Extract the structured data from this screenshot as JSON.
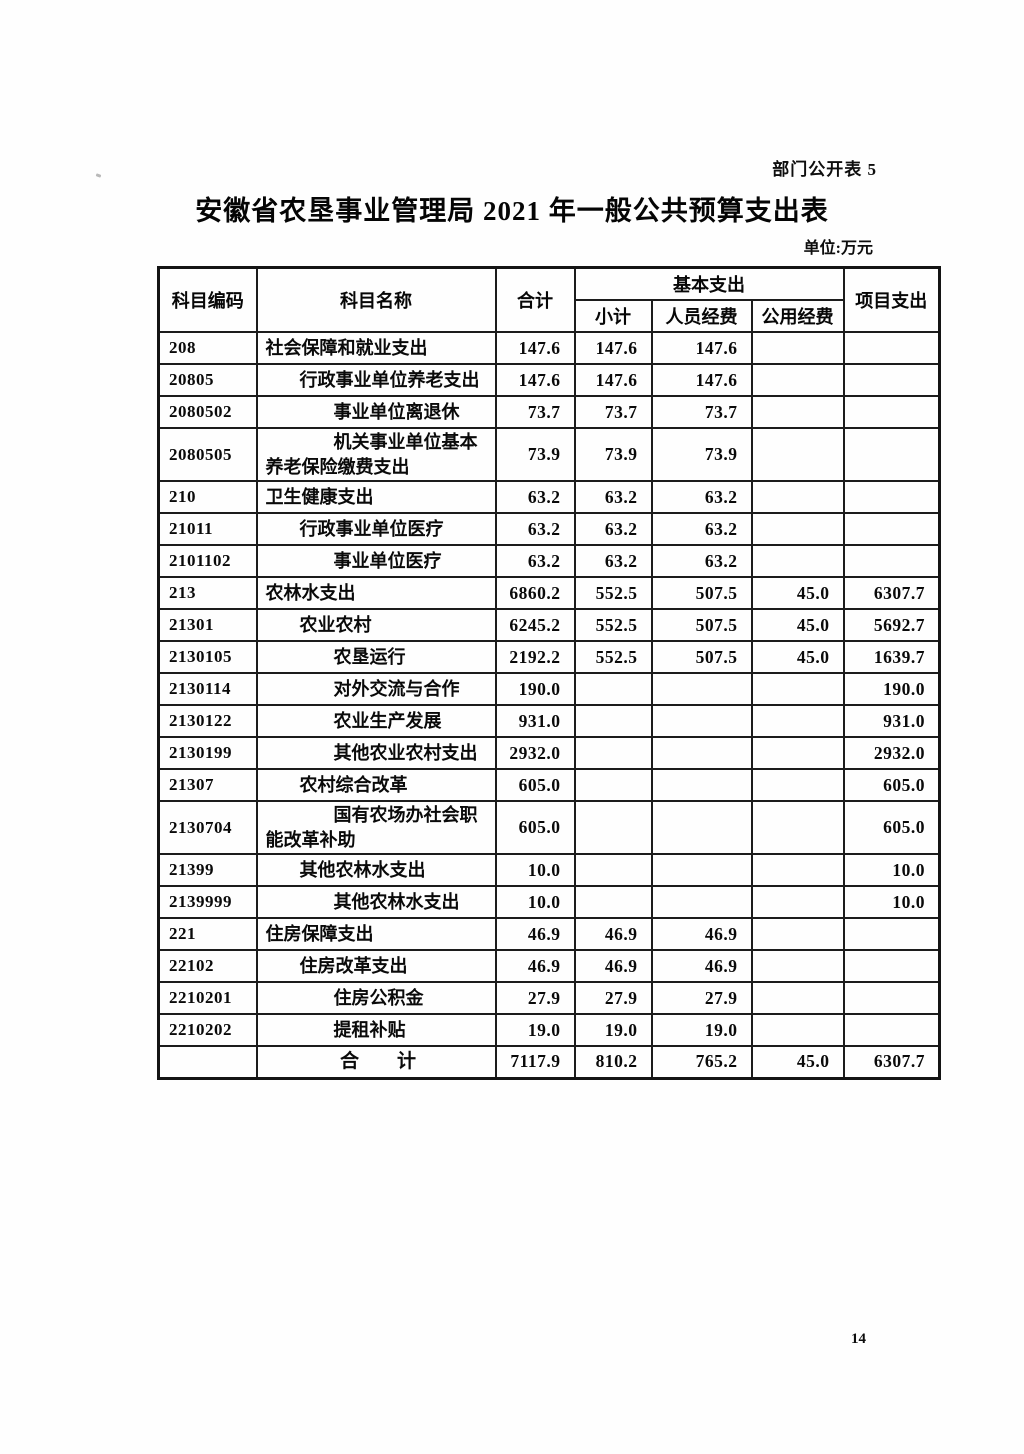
{
  "page": {
    "corner_note": "部门公开表 5",
    "title": "安徽省农垦事业管理局 2021 年一般公共预算支出表",
    "unit_label": "单位:万元",
    "page_number": "14"
  },
  "table": {
    "headers": {
      "code": "科目编码",
      "name": "科目名称",
      "total": "合计",
      "basic_group": "基本支出",
      "basic_subtotal": "小计",
      "basic_personnel": "人员经费",
      "basic_public": "公用经费",
      "project": "项目支出"
    },
    "rows": [
      {
        "code": "208",
        "name": "社会保障和就业支出",
        "level": "1",
        "total": "147.6",
        "subtotal": "147.6",
        "personnel": "147.6",
        "public": "",
        "project": ""
      },
      {
        "code": "20805",
        "name": "行政事业单位养老支出",
        "level": "2",
        "total": "147.6",
        "subtotal": "147.6",
        "personnel": "147.6",
        "public": "",
        "project": ""
      },
      {
        "code": "2080502",
        "name": "事业单位离退休",
        "level": "3",
        "total": "73.7",
        "subtotal": "73.7",
        "personnel": "73.7",
        "public": "",
        "project": ""
      },
      {
        "code": "2080505",
        "name": "机关事业单位基本\n养老保险缴费支出",
        "level": "3",
        "total": "73.9",
        "subtotal": "73.9",
        "personnel": "73.9",
        "public": "",
        "project": ""
      },
      {
        "code": "210",
        "name": "卫生健康支出",
        "level": "1",
        "total": "63.2",
        "subtotal": "63.2",
        "personnel": "63.2",
        "public": "",
        "project": ""
      },
      {
        "code": "21011",
        "name": "行政事业单位医疗",
        "level": "2",
        "total": "63.2",
        "subtotal": "63.2",
        "personnel": "63.2",
        "public": "",
        "project": ""
      },
      {
        "code": "2101102",
        "name": "事业单位医疗",
        "level": "3",
        "total": "63.2",
        "subtotal": "63.2",
        "personnel": "63.2",
        "public": "",
        "project": ""
      },
      {
        "code": "213",
        "name": "农林水支出",
        "level": "1",
        "total": "6860.2",
        "subtotal": "552.5",
        "personnel": "507.5",
        "public": "45.0",
        "project": "6307.7"
      },
      {
        "code": "21301",
        "name": "农业农村",
        "level": "2",
        "total": "6245.2",
        "subtotal": "552.5",
        "personnel": "507.5",
        "public": "45.0",
        "project": "5692.7"
      },
      {
        "code": "2130105",
        "name": "农垦运行",
        "level": "3",
        "total": "2192.2",
        "subtotal": "552.5",
        "personnel": "507.5",
        "public": "45.0",
        "project": "1639.7"
      },
      {
        "code": "2130114",
        "name": "对外交流与合作",
        "level": "3",
        "total": "190.0",
        "subtotal": "",
        "personnel": "",
        "public": "",
        "project": "190.0"
      },
      {
        "code": "2130122",
        "name": "农业生产发展",
        "level": "3",
        "total": "931.0",
        "subtotal": "",
        "personnel": "",
        "public": "",
        "project": "931.0"
      },
      {
        "code": "2130199",
        "name": "其他农业农村支出",
        "level": "3",
        "total": "2932.0",
        "subtotal": "",
        "personnel": "",
        "public": "",
        "project": "2932.0"
      },
      {
        "code": "21307",
        "name": "农村综合改革",
        "level": "2",
        "total": "605.0",
        "subtotal": "",
        "personnel": "",
        "public": "",
        "project": "605.0"
      },
      {
        "code": "2130704",
        "name": "国有农场办社会职\n能改革补助",
        "level": "3",
        "total": "605.0",
        "subtotal": "",
        "personnel": "",
        "public": "",
        "project": "605.0"
      },
      {
        "code": "21399",
        "name": "其他农林水支出",
        "level": "2",
        "total": "10.0",
        "subtotal": "",
        "personnel": "",
        "public": "",
        "project": "10.0"
      },
      {
        "code": "2139999",
        "name": "其他农林水支出",
        "level": "3",
        "total": "10.0",
        "subtotal": "",
        "personnel": "",
        "public": "",
        "project": "10.0"
      },
      {
        "code": "221",
        "name": "住房保障支出",
        "level": "1",
        "total": "46.9",
        "subtotal": "46.9",
        "personnel": "46.9",
        "public": "",
        "project": ""
      },
      {
        "code": "22102",
        "name": "住房改革支出",
        "level": "2",
        "total": "46.9",
        "subtotal": "46.9",
        "personnel": "46.9",
        "public": "",
        "project": ""
      },
      {
        "code": "2210201",
        "name": "住房公积金",
        "level": "3",
        "total": "27.9",
        "subtotal": "27.9",
        "personnel": "27.9",
        "public": "",
        "project": ""
      },
      {
        "code": "2210202",
        "name": "提租补贴",
        "level": "3",
        "total": "19.0",
        "subtotal": "19.0",
        "personnel": "19.0",
        "public": "",
        "project": ""
      },
      {
        "code": "",
        "name": "合　　计",
        "level": "total",
        "total": "7117.9",
        "subtotal": "810.2",
        "personnel": "765.2",
        "public": "45.0",
        "project": "6307.7"
      }
    ]
  }
}
